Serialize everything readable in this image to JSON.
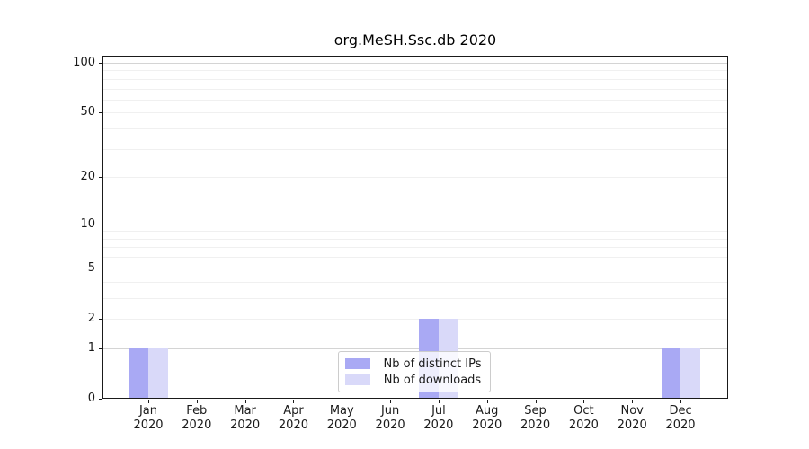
{
  "title": "org.MeSH.Ssc.db 2020",
  "legend": {
    "items": [
      {
        "label": "Nb of distinct IPs",
        "color": "#a9a9f4"
      },
      {
        "label": "Nb of downloads",
        "color": "#d9d9f9"
      }
    ]
  },
  "colors": {
    "grid_major": "#d4d4d4",
    "grid_minor": "#f0f0f0",
    "spine": "#1a1a1a",
    "ips_bar": "#a9a9f4",
    "downloads_bar": "#d9d9f9",
    "legend_border": "#cccccc"
  },
  "chart_data": {
    "type": "bar",
    "title": "org.MeSH.Ssc.db 2020",
    "categories": [
      "Jan 2020",
      "Feb 2020",
      "Mar 2020",
      "Apr 2020",
      "May 2020",
      "Jun 2020",
      "Jul 2020",
      "Aug 2020",
      "Sep 2020",
      "Oct 2020",
      "Nov 2020",
      "Dec 2020"
    ],
    "series": [
      {
        "name": "Nb of distinct IPs",
        "color": "#a9a9f4",
        "values": [
          1,
          0,
          0,
          0,
          0,
          0,
          2,
          0,
          0,
          0,
          0,
          1
        ]
      },
      {
        "name": "Nb of downloads",
        "color": "#d9d9f9",
        "values": [
          1,
          0,
          0,
          0,
          0,
          0,
          2,
          0,
          0,
          0,
          0,
          1
        ]
      }
    ],
    "xlabel": "",
    "ylabel": "",
    "yscale": "log1p",
    "ylim": [
      0,
      112
    ],
    "yticks": [
      0,
      1,
      2,
      5,
      10,
      20,
      50,
      100
    ],
    "grid": "horizontal",
    "legend_position": "lower center"
  }
}
